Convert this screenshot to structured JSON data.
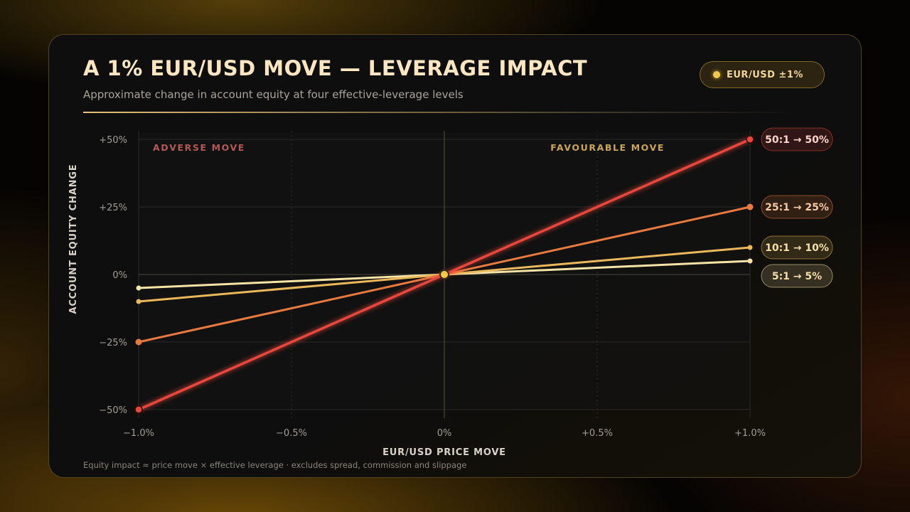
{
  "header": {
    "title": "A 1% EUR/USD MOVE — LEVERAGE IMPACT",
    "subtitle": "Approximate change in account equity at four effective-leverage levels",
    "badge": "EUR/USD ±1%"
  },
  "footnote": "Equity impact ≈ price move × effective leverage · excludes spread, commission and slippage",
  "chart_data": {
    "type": "line",
    "xlabel": "EUR/USD PRICE MOVE",
    "ylabel": "ACCOUNT EQUITY CHANGE",
    "xlim": [
      -1.0,
      1.0
    ],
    "ylim": [
      -50,
      50
    ],
    "x_ticks": [
      {
        "value": -1.0,
        "label": "−1.0%"
      },
      {
        "value": -0.5,
        "label": "−0.5%"
      },
      {
        "value": 0,
        "label": "0%"
      },
      {
        "value": 0.5,
        "label": "+0.5%"
      },
      {
        "value": 1.0,
        "label": "+1.0%"
      }
    ],
    "y_ticks": [
      {
        "value": 50,
        "label": "+50%"
      },
      {
        "value": 25,
        "label": "+25%"
      },
      {
        "value": 0,
        "label": "0%"
      },
      {
        "value": -25,
        "label": "−25%"
      },
      {
        "value": -50,
        "label": "−50%"
      }
    ],
    "zones": {
      "left": "ADVERSE MOVE",
      "right": "FAVOURABLE MOVE"
    },
    "grid": true,
    "series": [
      {
        "leverage": "50:1",
        "x": [
          -1.0,
          0,
          1.0
        ],
        "values": [
          -50,
          0,
          50
        ],
        "color": "#e8473a",
        "end_label": "50:1 → 50%"
      },
      {
        "leverage": "25:1",
        "x": [
          -1.0,
          0,
          1.0
        ],
        "values": [
          -25,
          0,
          25
        ],
        "color": "#e97a3f",
        "end_label": "25:1 → 25%"
      },
      {
        "leverage": "10:1",
        "x": [
          -1.0,
          0,
          1.0
        ],
        "values": [
          -10,
          0,
          10
        ],
        "color": "#e9b85a",
        "end_label": "10:1 → 10%"
      },
      {
        "leverage": "5:1",
        "x": [
          -1.0,
          0,
          1.0
        ],
        "values": [
          -5,
          0,
          5
        ],
        "color": "#f6e3a6",
        "end_label": "5:1 → 5%"
      }
    ],
    "colors": {
      "accent": "#f2c94c",
      "adverse": "#b45a55",
      "favourable": "#c9a45a"
    }
  }
}
